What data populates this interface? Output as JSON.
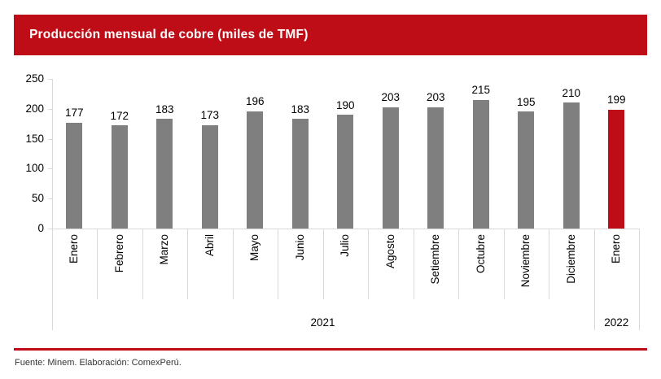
{
  "header": {
    "title": "Producción mensual de cobre (miles de TMF)"
  },
  "footer": {
    "source": "Fuente: Minem. Elaboración: ComexPerú."
  },
  "colors": {
    "accent_red": "#bf0d17",
    "bar_gray": "#7f7f7f",
    "axis_line": "#d9d9d9",
    "label_text": "#000000"
  },
  "chart_data": {
    "type": "bar",
    "title": "Producción mensual de cobre (miles de TMF)",
    "categories": [
      "Enero",
      "Febrero",
      "Marzo",
      "Abril",
      "Mayo",
      "Junio",
      "Julio",
      "Agosto",
      "Setiembre",
      "Octubre",
      "Noviembre",
      "Diciembre",
      "Enero"
    ],
    "values": [
      177,
      172,
      183,
      173,
      196,
      183,
      190,
      203,
      203,
      215,
      195,
      210,
      199
    ],
    "highlight_index": 12,
    "groups": [
      {
        "label": "2021",
        "start": 0,
        "end": 11
      },
      {
        "label": "2022",
        "start": 12,
        "end": 12
      }
    ],
    "xlabel": "",
    "ylabel": "",
    "ylim": [
      0,
      250
    ],
    "yticks": [
      0,
      50,
      100,
      150,
      200,
      250
    ],
    "data_labels": true,
    "grid": false,
    "legend": "none"
  }
}
